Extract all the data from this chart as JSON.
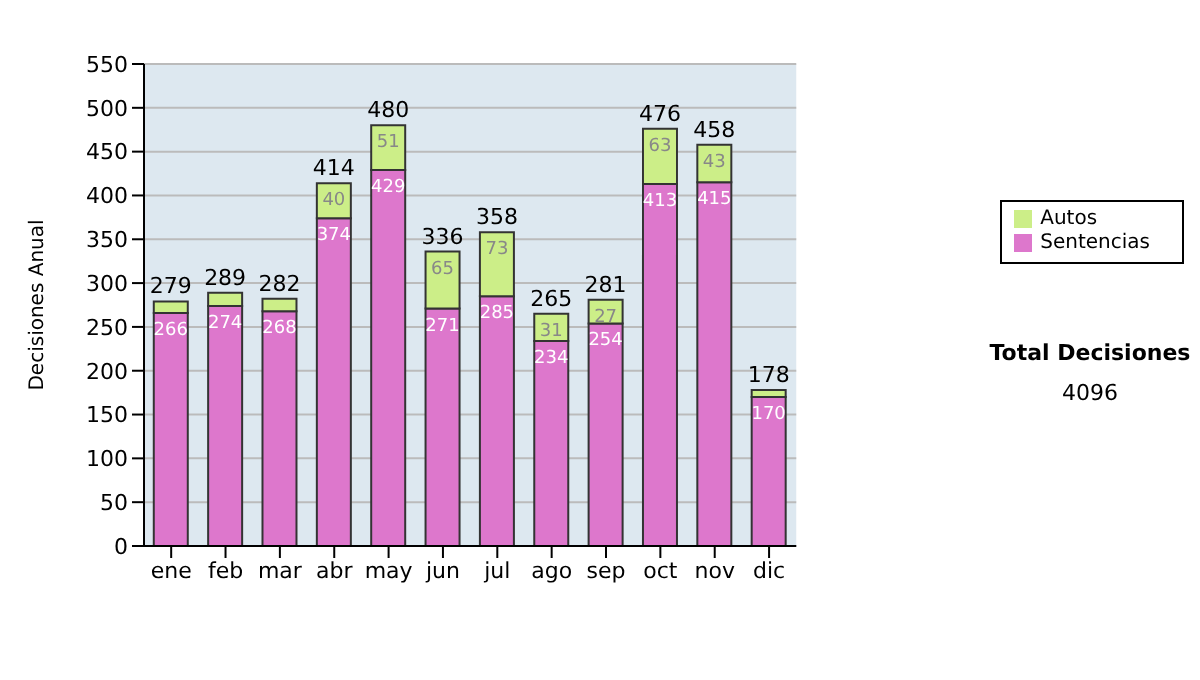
{
  "chart_data": {
    "type": "bar",
    "stacked": true,
    "ylabel": "Decisiones Anual",
    "categories": [
      "ene",
      "feb",
      "mar",
      "abr",
      "may",
      "jun",
      "jul",
      "ago",
      "sep",
      "oct",
      "nov",
      "dic"
    ],
    "series": [
      {
        "name": "Sentencias",
        "color": "#dd77cc",
        "values": [
          266,
          274,
          268,
          374,
          429,
          271,
          285,
          234,
          254,
          413,
          415,
          170
        ],
        "value_labels": [
          "266",
          "274",
          "268",
          "374",
          "429",
          "271",
          "285",
          "234",
          "254",
          "413",
          "415",
          "170"
        ]
      },
      {
        "name": "Autos",
        "color": "#ccee88",
        "values": [
          13,
          15,
          14,
          40,
          51,
          65,
          73,
          31,
          27,
          63,
          43,
          8
        ],
        "value_labels": [
          null,
          null,
          null,
          "40",
          "51",
          "65",
          "73",
          "31",
          "27",
          "63",
          "43",
          null
        ]
      }
    ],
    "totals": [
      "279",
      "289",
      "282",
      "414",
      "480",
      "336",
      "358",
      "265",
      "281",
      "476",
      "458",
      "178"
    ],
    "ylim": [
      0,
      550
    ],
    "yticks": [
      0,
      50,
      100,
      150,
      200,
      250,
      300,
      350,
      400,
      450,
      500,
      550
    ],
    "grid": "y",
    "legend": "right",
    "annotations": [
      "Total Decisiones",
      "4096"
    ]
  }
}
